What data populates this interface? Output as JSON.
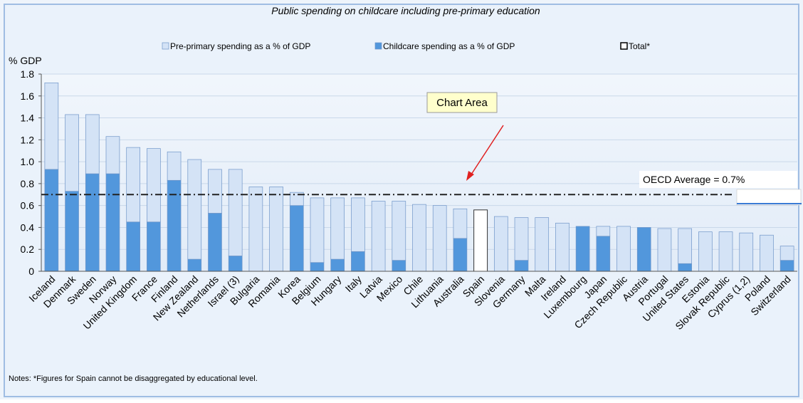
{
  "chart_data": {
    "type": "bar",
    "title": "Public spending on childcare including pre-primary education",
    "y_label": "% GDP",
    "categories": [
      "Iceland",
      "Denmark",
      "Sweden",
      "Norway",
      "United Kingdom",
      "France",
      "Finland",
      "New Zealand",
      "Netherlands",
      "Israel (3)",
      "Bulgaria",
      "Romania",
      "Korea",
      "Belgium",
      "Hungary",
      "Italy",
      "Latvia",
      "Mexico",
      "Chile",
      "Lithuania",
      "Australia",
      "Spain",
      "Slovenia",
      "Germany",
      "Malta",
      "Ireland",
      "Luxembourg",
      "Japan",
      "Czech Republic",
      "Austria",
      "Portugal",
      "United States",
      "Estonia",
      "Slovak Republic",
      "Cyprus (1,2)",
      "Poland",
      "Switzerland"
    ],
    "series": [
      {
        "name": "Pre-primary spending as a % of GDP",
        "color": "#d4e3f6",
        "values": [
          0.79,
          0.7,
          0.54,
          0.34,
          0.68,
          0.67,
          0.26,
          0.91,
          0.4,
          0.79,
          0.77,
          0.77,
          0.12,
          0.59,
          0.56,
          0.49,
          0.64,
          0.54,
          0.61,
          0.6,
          0.27,
          null,
          0.5,
          0.39,
          0.49,
          0.44,
          null,
          0.09,
          0.41,
          null,
          0.39,
          0.32,
          0.36,
          0.36,
          0.35,
          0.33,
          0.13
        ]
      },
      {
        "name": "Childcare spending as a % of GDP",
        "color": "#5297dc",
        "values": [
          0.93,
          0.73,
          0.89,
          0.89,
          0.45,
          0.45,
          0.83,
          0.11,
          0.53,
          0.14,
          null,
          null,
          0.6,
          0.08,
          0.11,
          0.18,
          null,
          0.1,
          null,
          null,
          0.3,
          null,
          null,
          0.1,
          null,
          null,
          0.41,
          0.32,
          null,
          0.4,
          null,
          0.07,
          null,
          null,
          null,
          null,
          0.1
        ]
      },
      {
        "name": "Total*",
        "color": "#ffffff",
        "values": [
          null,
          null,
          null,
          null,
          null,
          null,
          null,
          null,
          null,
          null,
          null,
          null,
          null,
          null,
          null,
          null,
          null,
          null,
          null,
          null,
          null,
          0.56,
          null,
          null,
          null,
          null,
          null,
          null,
          null,
          null,
          null,
          null,
          null,
          null,
          null,
          null,
          null
        ]
      }
    ],
    "stacked": true,
    "ylim": [
      0,
      1.8
    ],
    "yticks": [
      0,
      0.2,
      0.4,
      0.6,
      0.8,
      {
        "value": 1,
        "label": "1.0"
      },
      1.2,
      1.4,
      1.6,
      1.8
    ],
    "grid": true,
    "reference_line": {
      "value": 0.7,
      "label": "OECD Average = 0.7%"
    },
    "tooltip": "Chart Area",
    "note": "Notes: *Figures for Spain cannot be disaggregated by educational level."
  }
}
